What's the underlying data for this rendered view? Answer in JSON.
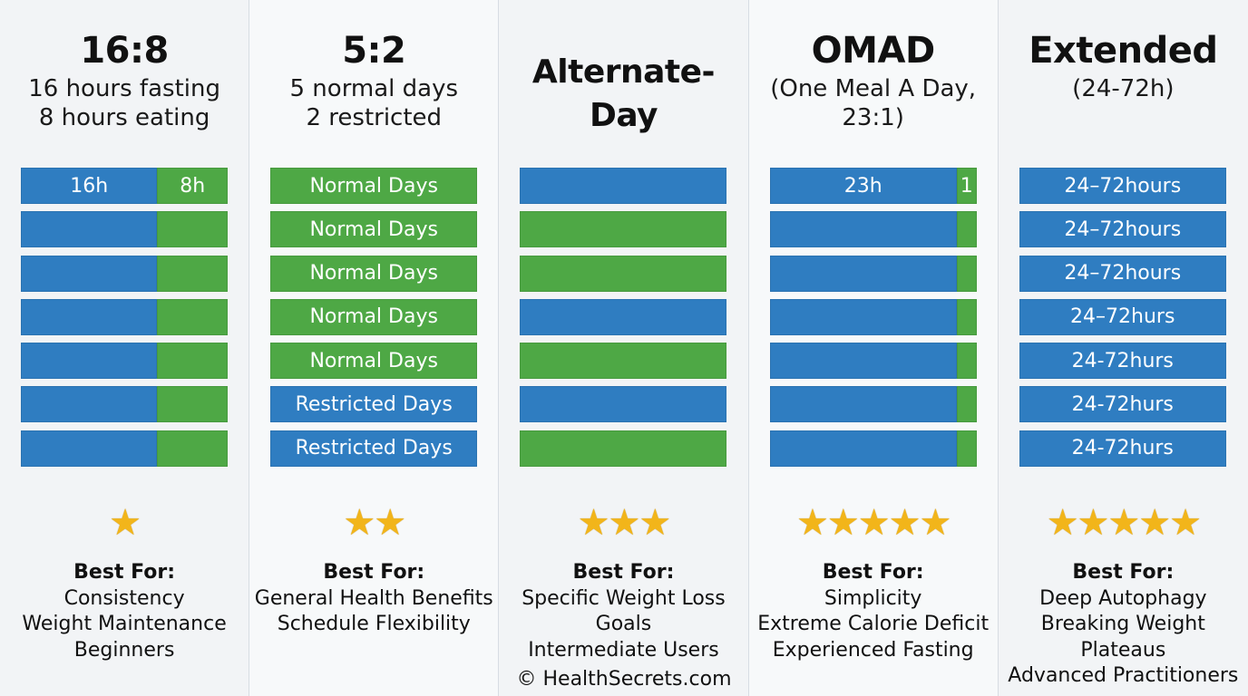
{
  "columns": [
    {
      "title": "16:8",
      "subtitle": [
        "16 hours fasting",
        "8 hours eating"
      ],
      "bars": [
        [
          {
            "c": "blue",
            "w": 0.66,
            "t": "16h"
          },
          {
            "c": "green",
            "w": 0.34,
            "t": "8h"
          }
        ],
        [
          {
            "c": "blue",
            "w": 0.66,
            "t": ""
          },
          {
            "c": "green",
            "w": 0.34,
            "t": ""
          }
        ],
        [
          {
            "c": "blue",
            "w": 0.66,
            "t": ""
          },
          {
            "c": "green",
            "w": 0.34,
            "t": ""
          }
        ],
        [
          {
            "c": "blue",
            "w": 0.66,
            "t": ""
          },
          {
            "c": "green",
            "w": 0.34,
            "t": ""
          }
        ],
        [
          {
            "c": "blue",
            "w": 0.66,
            "t": ""
          },
          {
            "c": "green",
            "w": 0.34,
            "t": ""
          }
        ],
        [
          {
            "c": "blue",
            "w": 0.66,
            "t": ""
          },
          {
            "c": "green",
            "w": 0.34,
            "t": ""
          }
        ],
        [
          {
            "c": "blue",
            "w": 0.66,
            "t": ""
          },
          {
            "c": "green",
            "w": 0.34,
            "t": ""
          }
        ]
      ],
      "rating": 1,
      "best_label": "Best For:",
      "best": [
        "Consistency",
        "Weight Maintenance",
        "Beginners"
      ]
    },
    {
      "title": "5:2",
      "subtitle": [
        "5 normal days",
        "2 restricted"
      ],
      "bars": [
        [
          {
            "c": "green",
            "w": 1,
            "t": "Normal Days"
          }
        ],
        [
          {
            "c": "green",
            "w": 1,
            "t": "Normal Days"
          }
        ],
        [
          {
            "c": "green",
            "w": 1,
            "t": "Normal Days"
          }
        ],
        [
          {
            "c": "green",
            "w": 1,
            "t": "Normal Days"
          }
        ],
        [
          {
            "c": "green",
            "w": 1,
            "t": "Normal Days"
          }
        ],
        [
          {
            "c": "blue",
            "w": 1,
            "t": "Restricted Days"
          }
        ],
        [
          {
            "c": "blue",
            "w": 1,
            "t": "Restricted Days"
          }
        ]
      ],
      "rating": 2,
      "best_label": "Best For:",
      "best": [
        "General Health Benefits",
        "Schedule Flexibility"
      ]
    },
    {
      "title": "Alternate-Day",
      "subtitle": [],
      "bars": [
        [
          {
            "c": "blue",
            "w": 1,
            "t": ""
          }
        ],
        [
          {
            "c": "green",
            "w": 1,
            "t": ""
          }
        ],
        [
          {
            "c": "green",
            "w": 1,
            "t": ""
          }
        ],
        [
          {
            "c": "blue",
            "w": 1,
            "t": ""
          }
        ],
        [
          {
            "c": "green",
            "w": 1,
            "t": ""
          }
        ],
        [
          {
            "c": "blue",
            "w": 1,
            "t": ""
          }
        ],
        [
          {
            "c": "green",
            "w": 1,
            "t": ""
          }
        ]
      ],
      "rating": 3,
      "best_label": "Best For:",
      "best": [
        "Specific Weight Loss Goals",
        "Intermediate Users"
      ]
    },
    {
      "title": "OMAD",
      "subtitle": [
        "(One Meal A Day,",
        "23:1)"
      ],
      "bars": [
        [
          {
            "c": "blue",
            "w": 0.905,
            "t": "23h"
          },
          {
            "c": "green",
            "w": 0.095,
            "t": "1"
          }
        ],
        [
          {
            "c": "blue",
            "w": 0.905,
            "t": ""
          },
          {
            "c": "green",
            "w": 0.095,
            "t": ""
          }
        ],
        [
          {
            "c": "blue",
            "w": 0.905,
            "t": ""
          },
          {
            "c": "green",
            "w": 0.095,
            "t": ""
          }
        ],
        [
          {
            "c": "blue",
            "w": 0.905,
            "t": ""
          },
          {
            "c": "green",
            "w": 0.095,
            "t": ""
          }
        ],
        [
          {
            "c": "blue",
            "w": 0.905,
            "t": ""
          },
          {
            "c": "green",
            "w": 0.095,
            "t": ""
          }
        ],
        [
          {
            "c": "blue",
            "w": 0.905,
            "t": ""
          },
          {
            "c": "green",
            "w": 0.095,
            "t": ""
          }
        ],
        [
          {
            "c": "blue",
            "w": 0.905,
            "t": ""
          },
          {
            "c": "green",
            "w": 0.095,
            "t": ""
          }
        ]
      ],
      "rating": 5,
      "best_label": "Best For:",
      "best": [
        "Simplicity",
        "Extreme Calorie Deficit",
        "Experienced Fasting"
      ]
    },
    {
      "title": "Extended",
      "subtitle": [
        "(24-72h)"
      ],
      "bars": [
        [
          {
            "c": "blue",
            "w": 1,
            "t": "24–72hours"
          }
        ],
        [
          {
            "c": "blue",
            "w": 1,
            "t": "24–72hours"
          }
        ],
        [
          {
            "c": "blue",
            "w": 1,
            "t": "24–72hours"
          }
        ],
        [
          {
            "c": "blue",
            "w": 1,
            "t": "24–72hurs"
          }
        ],
        [
          {
            "c": "blue",
            "w": 1,
            "t": "24-72hurs"
          }
        ],
        [
          {
            "c": "blue",
            "w": 1,
            "t": "24-72hurs"
          }
        ],
        [
          {
            "c": "blue",
            "w": 1,
            "t": "24-72hurs"
          }
        ]
      ],
      "rating": 5,
      "best_label": "Best For:",
      "best": [
        "Deep Autophagy",
        "Breaking Weight Plateaus",
        "Advanced Practitioners"
      ]
    }
  ],
  "colors": {
    "fast": "#2f7dc1",
    "eat": "#4ea845",
    "star": "#f2b51a"
  },
  "star_glyph": "★",
  "footer": "© HealthSecrets.com"
}
